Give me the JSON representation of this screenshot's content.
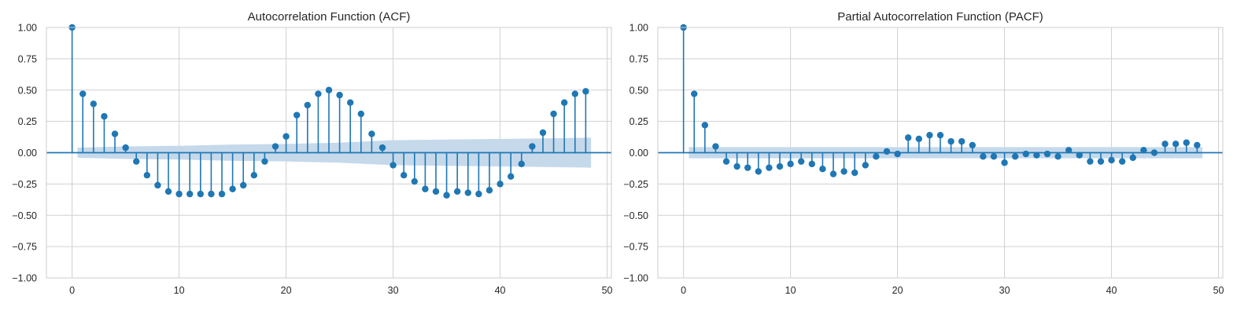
{
  "colors": {
    "stem": "#1f77b4",
    "band": "#c5d9eb",
    "grid": "#d0d0d0",
    "frame": "#cccccc",
    "text": "#262626"
  },
  "chart_data": [
    {
      "type": "stem",
      "title": "Autocorrelation Function (ACF)",
      "xlabel": "",
      "ylabel": "",
      "xlim": [
        -2.4,
        50.4
      ],
      "ylim": [
        -1.0,
        1.0
      ],
      "x_ticks": [
        0,
        10,
        20,
        30,
        40,
        50
      ],
      "y_ticks": [
        -1.0,
        -0.75,
        -0.5,
        -0.25,
        0.0,
        0.25,
        0.5,
        0.75,
        1.0
      ],
      "y_tick_labels": [
        "−1.00",
        "−0.75",
        "−0.50",
        "−0.25",
        "0.00",
        "0.25",
        "0.50",
        "0.75",
        "1.00"
      ],
      "x_tick_labels": [
        "0",
        "10",
        "20",
        "30",
        "40",
        "50"
      ],
      "grid": true,
      "lags": [
        0,
        1,
        2,
        3,
        4,
        5,
        6,
        7,
        8,
        9,
        10,
        11,
        12,
        13,
        14,
        15,
        16,
        17,
        18,
        19,
        20,
        21,
        22,
        23,
        24,
        25,
        26,
        27,
        28,
        29,
        30,
        31,
        32,
        33,
        34,
        35,
        36,
        37,
        38,
        39,
        40,
        41,
        42,
        43,
        44,
        45,
        46,
        47,
        48
      ],
      "values": [
        1.0,
        0.47,
        0.39,
        0.29,
        0.15,
        0.04,
        -0.07,
        -0.18,
        -0.26,
        -0.31,
        -0.33,
        -0.33,
        -0.33,
        -0.33,
        -0.33,
        -0.29,
        -0.26,
        -0.18,
        -0.07,
        0.05,
        0.13,
        0.3,
        0.38,
        0.47,
        0.5,
        0.46,
        0.4,
        0.31,
        0.15,
        0.04,
        -0.1,
        -0.18,
        -0.23,
        -0.29,
        -0.31,
        -0.34,
        -0.31,
        -0.32,
        -0.33,
        -0.3,
        -0.25,
        -0.19,
        -0.09,
        0.05,
        0.16,
        0.31,
        0.4,
        0.47,
        0.49
      ],
      "confidence_band": {
        "lags": [
          0.5,
          5,
          10,
          15,
          20,
          25,
          30,
          35,
          40,
          45,
          48.5
        ],
        "upper": [
          0.04,
          0.05,
          0.055,
          0.065,
          0.07,
          0.08,
          0.1,
          0.105,
          0.11,
          0.115,
          0.12
        ],
        "lower": [
          -0.04,
          -0.05,
          -0.055,
          -0.065,
          -0.07,
          -0.08,
          -0.1,
          -0.105,
          -0.11,
          -0.115,
          -0.12
        ]
      }
    },
    {
      "type": "stem",
      "title": "Partial Autocorrelation Function (PACF)",
      "xlabel": "",
      "ylabel": "",
      "xlim": [
        -2.4,
        50.4
      ],
      "ylim": [
        -1.0,
        1.0
      ],
      "x_ticks": [
        0,
        10,
        20,
        30,
        40,
        50
      ],
      "y_ticks": [
        -1.0,
        -0.75,
        -0.5,
        -0.25,
        0.0,
        0.25,
        0.5,
        0.75,
        1.0
      ],
      "y_tick_labels": [
        "−1.00",
        "−0.75",
        "−0.50",
        "−0.25",
        "0.00",
        "0.25",
        "0.50",
        "0.75",
        "1.00"
      ],
      "x_tick_labels": [
        "0",
        "10",
        "20",
        "30",
        "40",
        "50"
      ],
      "grid": true,
      "lags": [
        0,
        1,
        2,
        3,
        4,
        5,
        6,
        7,
        8,
        9,
        10,
        11,
        12,
        13,
        14,
        15,
        16,
        17,
        18,
        19,
        20,
        21,
        22,
        23,
        24,
        25,
        26,
        27,
        28,
        29,
        30,
        31,
        32,
        33,
        34,
        35,
        36,
        37,
        38,
        39,
        40,
        41,
        42,
        43,
        44,
        45,
        46,
        47,
        48
      ],
      "values": [
        1.0,
        0.47,
        0.22,
        0.05,
        -0.07,
        -0.11,
        -0.12,
        -0.15,
        -0.12,
        -0.11,
        -0.09,
        -0.07,
        -0.09,
        -0.13,
        -0.17,
        -0.15,
        -0.16,
        -0.1,
        -0.03,
        0.01,
        -0.01,
        0.12,
        0.11,
        0.14,
        0.14,
        0.09,
        0.09,
        0.06,
        -0.03,
        -0.03,
        -0.08,
        -0.03,
        -0.01,
        -0.02,
        -0.01,
        -0.03,
        0.02,
        -0.02,
        -0.07,
        -0.07,
        -0.06,
        -0.07,
        -0.04,
        0.02,
        0.0,
        0.07,
        0.07,
        0.08,
        0.06
      ],
      "confidence_band": {
        "lags": [
          0.5,
          48.5
        ],
        "upper": [
          0.045,
          0.045
        ],
        "lower": [
          -0.045,
          -0.045
        ]
      }
    }
  ]
}
